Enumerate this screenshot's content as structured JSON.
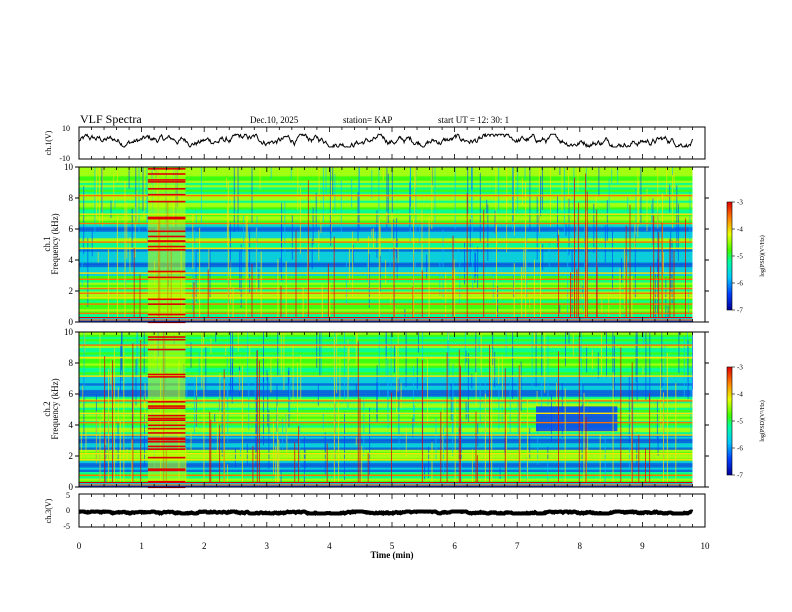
{
  "header": {
    "title": "VLF Spectra",
    "date": "Dec.10, 2025",
    "station": "station= KAP",
    "start": "start  UT =   12: 30: 1"
  },
  "chart_data": [
    {
      "type": "line",
      "id": "ch1-waveform",
      "ylabel": "ch.1(V)",
      "ylim": [
        -10,
        10
      ],
      "yticks": [
        "10",
        "-10"
      ],
      "xlim": [
        0,
        10
      ],
      "series": [
        {
          "name": "ch.1",
          "x_end": 9.8,
          "mean": 1.5,
          "amplitude": 4,
          "color": "#000000"
        }
      ]
    },
    {
      "type": "heatmap",
      "id": "ch1-spectrogram",
      "ylabel": "ch.1\nFrequency (kHz)",
      "ylabel_line1": "ch.1",
      "ylabel_line2": "Frequency (kHz)",
      "ylim": [
        0,
        10
      ],
      "yticks": [
        "0",
        "2",
        "4",
        "6",
        "8",
        "10"
      ],
      "xlim": [
        0,
        10
      ],
      "x_end": 9.8,
      "bands_khz": [
        0.6,
        1.2,
        1.6,
        1.9,
        2.2,
        2.8,
        3.2,
        4.8,
        5.2,
        6.4,
        7.0,
        8.2
      ],
      "quiet_bands_khz": [
        [
          3.0,
          4.6
        ],
        [
          5.4,
          6.2
        ]
      ],
      "burst_minutes": [
        1.1,
        1.7
      ],
      "colorbar": {
        "label": "log(PSD)(V²/Hz)",
        "range": [
          -7,
          -3
        ],
        "ticks": [
          "-3",
          "-4",
          "-5",
          "-6",
          "-7"
        ]
      }
    },
    {
      "type": "heatmap",
      "id": "ch2-spectrogram",
      "ylabel_line1": "ch.2",
      "ylabel_line2": "Frequency (kHz)",
      "ylim": [
        0,
        10
      ],
      "yticks": [
        "0",
        "2",
        "4",
        "6",
        "8",
        "10"
      ],
      "xlim": [
        0,
        10
      ],
      "x_end": 9.8,
      "bands_khz": [
        0.8,
        1.8,
        2.2,
        3.4,
        4.2,
        4.8,
        5.6,
        7.2,
        8.4,
        9.2
      ],
      "quiet_bands_khz": [
        [
          2.4,
          3.3
        ],
        [
          0.9,
          1.7
        ],
        [
          5.8,
          7.0
        ]
      ],
      "quiet_patch": {
        "minutes": [
          7.3,
          8.6
        ],
        "khz": [
          3.6,
          5.2
        ]
      },
      "burst_minutes": [
        1.1,
        1.7
      ],
      "colorbar": {
        "label": "log(PSD)(V²/Hz)",
        "range": [
          -7,
          -3
        ],
        "ticks": [
          "-3",
          "-4",
          "-5",
          "-6",
          "-7"
        ]
      }
    },
    {
      "type": "line",
      "id": "ch3-waveform",
      "ylabel": "ch.3(V)",
      "ylim": [
        -5,
        5
      ],
      "yticks": [
        "5",
        "0",
        "-5"
      ],
      "xlim": [
        0,
        10
      ],
      "series": [
        {
          "name": "ch.3",
          "x_end": 9.8,
          "mean": -0.6,
          "amplitude": 0.3,
          "color": "#000000"
        }
      ]
    }
  ],
  "xaxis": {
    "label": "Time (min)",
    "ticks": [
      "0",
      "1",
      "2",
      "3",
      "4",
      "5",
      "6",
      "7",
      "8",
      "9",
      "10"
    ]
  },
  "colors": {
    "scale": [
      "#0000a0",
      "#0040ff",
      "#00c0ff",
      "#00ffa0",
      "#40ff00",
      "#c0ff00",
      "#ffe000",
      "#ff7000",
      "#e00000"
    ],
    "background": "#ffffff",
    "axis": "#000000"
  }
}
